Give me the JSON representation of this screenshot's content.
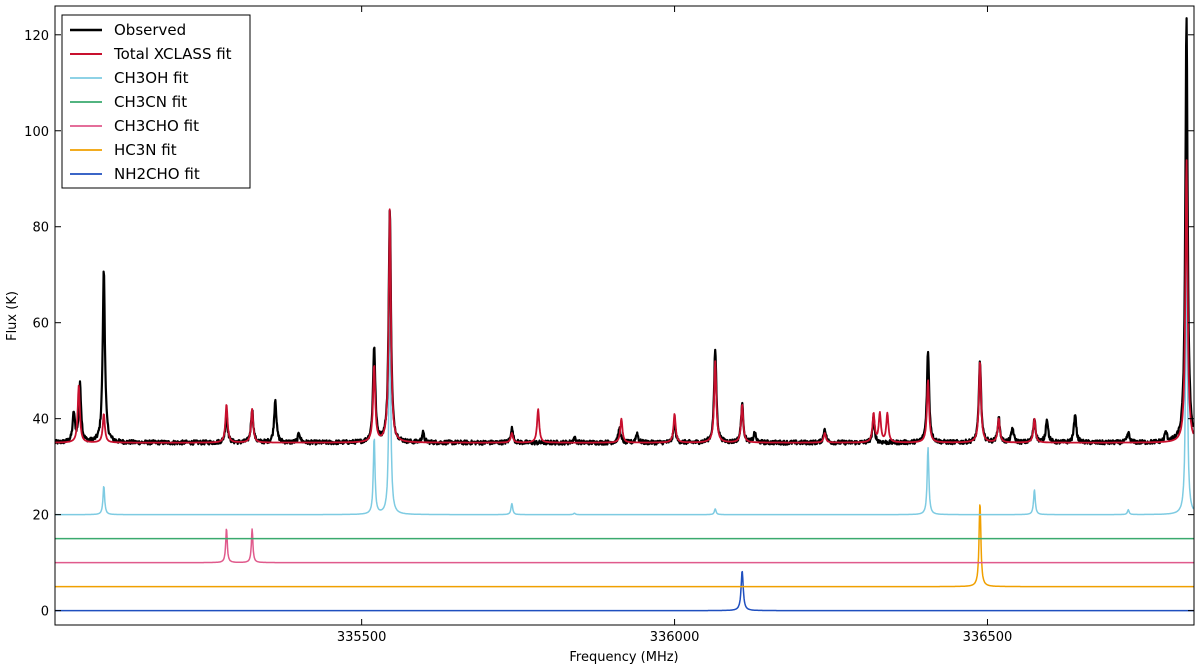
{
  "chart_data": {
    "type": "line",
    "xlabel": "Frequency (MHz)",
    "ylabel": "Flux (K)",
    "xlim": [
      335010,
      336830
    ],
    "ylim": [
      -3,
      126
    ],
    "xticks": [
      335500,
      336000,
      336500
    ],
    "yticks": [
      0,
      20,
      40,
      60,
      80,
      100,
      120
    ],
    "grid": false,
    "legend_position": "top-left",
    "series": [
      {
        "name": "Observed",
        "color": "#000000",
        "width": 2.2,
        "baseline": 35,
        "noise": 0.45,
        "linewidth_mhz": 3.2,
        "lines": [
          [
            335040,
            6
          ],
          [
            335050,
            12
          ],
          [
            335088,
            36
          ],
          [
            335284,
            6
          ],
          [
            335325,
            7
          ],
          [
            335362,
            9
          ],
          [
            335400,
            2
          ],
          [
            335520,
            20
          ],
          [
            335545,
            49
          ],
          [
            335598,
            2
          ],
          [
            335740,
            3
          ],
          [
            335840,
            1
          ],
          [
            335912,
            3
          ],
          [
            335940,
            2
          ],
          [
            336000,
            4
          ],
          [
            336065,
            19.5
          ],
          [
            336108,
            8
          ],
          [
            336128,
            2
          ],
          [
            336240,
            3
          ],
          [
            336318,
            5
          ],
          [
            336405,
            19
          ],
          [
            336488,
            17
          ],
          [
            336518,
            5
          ],
          [
            336540,
            3
          ],
          [
            336575,
            5
          ],
          [
            336595,
            5
          ],
          [
            336640,
            6
          ],
          [
            336725,
            2
          ],
          [
            336785,
            2
          ],
          [
            336818,
            89
          ]
        ]
      },
      {
        "name": "Total XCLASS fit",
        "color": "#c8102e",
        "width": 1.8,
        "baseline": 35,
        "noise": 0,
        "linewidth_mhz": 3.0,
        "lines": [
          [
            335048,
            12
          ],
          [
            335088,
            6
          ],
          [
            335284,
            8
          ],
          [
            335325,
            7
          ],
          [
            335520,
            16
          ],
          [
            335545,
            49
          ],
          [
            335740,
            2
          ],
          [
            335782,
            7
          ],
          [
            335915,
            5
          ],
          [
            336000,
            6
          ],
          [
            336065,
            17
          ],
          [
            336108,
            8
          ],
          [
            336240,
            2
          ],
          [
            336318,
            6
          ],
          [
            336328,
            6
          ],
          [
            336340,
            6
          ],
          [
            336405,
            13
          ],
          [
            336488,
            17
          ],
          [
            336518,
            5
          ],
          [
            336575,
            5
          ],
          [
            336818,
            59
          ]
        ]
      },
      {
        "name": "CH3OH fit",
        "color": "#7ecbe2",
        "width": 1.5,
        "baseline": 20,
        "noise": 0,
        "linewidth_mhz": 2.4,
        "lines": [
          [
            335088,
            6
          ],
          [
            335520,
            16
          ],
          [
            335545,
            49
          ],
          [
            335740,
            2.3
          ],
          [
            335840,
            0.3
          ],
          [
            336065,
            1.2
          ],
          [
            336405,
            14
          ],
          [
            336575,
            5.2
          ],
          [
            336725,
            1
          ],
          [
            336818,
            59
          ]
        ]
      },
      {
        "name": "CH3CN fit",
        "color": "#3aaa6e",
        "width": 1.5,
        "baseline": 15,
        "noise": 0,
        "linewidth_mhz": 2.4,
        "lines": []
      },
      {
        "name": "CH3CHO fit",
        "color": "#e05a8c",
        "width": 1.5,
        "baseline": 10,
        "noise": 0,
        "linewidth_mhz": 2.2,
        "lines": [
          [
            335284,
            7.2
          ],
          [
            335325,
            7
          ]
        ]
      },
      {
        "name": "HC3N fit",
        "color": "#f0a000",
        "width": 1.5,
        "baseline": 5,
        "noise": 0,
        "linewidth_mhz": 2.6,
        "lines": [
          [
            336488,
            17.5
          ]
        ]
      },
      {
        "name": "NH2CHO fit",
        "color": "#1f4fbf",
        "width": 1.5,
        "baseline": 0,
        "noise": 0,
        "linewidth_mhz": 3.0,
        "lines": [
          [
            336108,
            8.3
          ]
        ]
      }
    ]
  }
}
